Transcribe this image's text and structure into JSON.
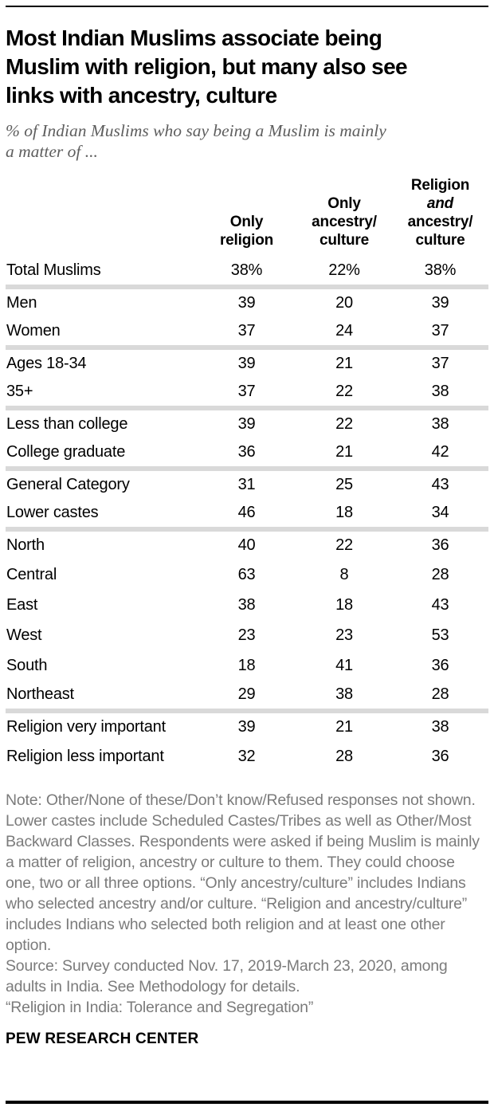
{
  "header": {
    "title": "Most Indian Muslims associate being Muslim with religion, but many also see links with ancestry, culture",
    "title_lines": [
      "Most Indian Muslims associate being",
      "Muslim with religion, but many also see",
      "links with ancestry, culture"
    ],
    "subtitle": "% of Indian Muslims who say being a Muslim is mainly a matter of ...",
    "subtitle_lines": [
      "% of Indian Muslims who say being a Muslim is mainly",
      "a matter of ..."
    ]
  },
  "table": {
    "col_headers": [
      {
        "lines": [
          "Only",
          "religion"
        ],
        "italic_lines": []
      },
      {
        "lines": [
          "Only",
          "ancestry/",
          "culture"
        ],
        "italic_lines": []
      },
      {
        "lines": [
          "Religion",
          "and",
          "ancestry/",
          "culture"
        ],
        "italic_lines": [
          1
        ]
      }
    ]
  },
  "chart_data": {
    "type": "table",
    "title": "Most Indian Muslims associate being Muslim with religion, but many also see links with ancestry, culture",
    "subtitle": "% of Indian Muslims who say being a Muslim is mainly a matter of ...",
    "columns": [
      "Only religion",
      "Only ancestry/culture",
      "Religion and ancestry/culture"
    ],
    "unit": "%",
    "groups": [
      {
        "rows": [
          {
            "label": "Total Muslims",
            "values": [
              38,
              22,
              38
            ],
            "show_percent": true
          }
        ]
      },
      {
        "rows": [
          {
            "label": "Men",
            "values": [
              39,
              20,
              39
            ]
          },
          {
            "label": "Women",
            "values": [
              37,
              24,
              37
            ]
          }
        ]
      },
      {
        "rows": [
          {
            "label": "Ages 18-34",
            "values": [
              39,
              21,
              37
            ]
          },
          {
            "label": "35+",
            "values": [
              37,
              22,
              38
            ]
          }
        ]
      },
      {
        "rows": [
          {
            "label": "Less than college",
            "values": [
              39,
              22,
              38
            ]
          },
          {
            "label": "College graduate",
            "values": [
              36,
              21,
              42
            ]
          }
        ]
      },
      {
        "rows": [
          {
            "label": "General Category",
            "values": [
              31,
              25,
              43
            ]
          },
          {
            "label": "Lower castes",
            "values": [
              46,
              18,
              34
            ]
          }
        ]
      },
      {
        "rows": [
          {
            "label": "North",
            "values": [
              40,
              22,
              36
            ]
          },
          {
            "label": "Central",
            "values": [
              63,
              8,
              28
            ]
          },
          {
            "label": "East",
            "values": [
              38,
              18,
              43
            ]
          },
          {
            "label": "West",
            "values": [
              23,
              23,
              53
            ]
          },
          {
            "label": "South",
            "values": [
              18,
              41,
              36
            ]
          },
          {
            "label": "Northeast",
            "values": [
              29,
              38,
              28
            ]
          }
        ]
      },
      {
        "rows": [
          {
            "label": "Religion very important",
            "values": [
              39,
              21,
              38
            ]
          },
          {
            "label": "Religion less important",
            "values": [
              32,
              28,
              36
            ]
          }
        ]
      }
    ]
  },
  "footer": {
    "note": "Note: Other/None of these/Don’t know/Refused responses not shown. Lower castes include Scheduled Castes/Tribes as well as Other/Most Backward Classes. Respondents were asked if being Muslim is mainly a matter of religion, ancestry or culture to them. They could choose one, two or all three options. “Only ancestry/culture” includes Indians who selected ancestry and/or culture. “Religion and ancestry/culture” includes Indians who selected both religion and at least one other option.",
    "source": "Source: Survey conducted Nov. 17, 2019-March 23, 2020, among adults in India. See Methodology for details.",
    "report": "“Religion in India: Tolerance and Segregation”",
    "brand": "PEW RESEARCH CENTER"
  },
  "colors": {
    "text": "#000000",
    "muted_text": "#7b7b7b",
    "subtitle_text": "#5e5e5e",
    "separator": "#d9d9d9",
    "rule": "#000000"
  }
}
